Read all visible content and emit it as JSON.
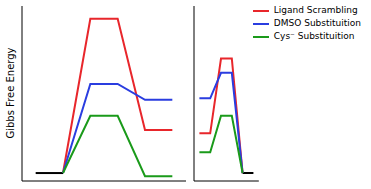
{
  "chart_data": [
    {
      "type": "line",
      "y_label": "Gibbs Free Energy",
      "x": [
        0,
        1,
        2,
        3,
        4,
        5
      ],
      "xlim": [
        -0.5,
        5.5
      ],
      "ylim": [
        -0.5,
        10.5
      ],
      "yticks": [
        0,
        2,
        4,
        6,
        8,
        10
      ],
      "tick_labels": false,
      "reference_level": {
        "x": [
          0,
          1
        ],
        "values": [
          0,
          0
        ],
        "color": "#000000"
      },
      "series": [
        {
          "name": "Ligand Scrambling",
          "color": "#e8262b",
          "values": [
            null,
            0,
            9.7,
            9.7,
            2.7,
            2.7
          ]
        },
        {
          "name": "DMSO Substituition",
          "color": "#2a3de0",
          "values": [
            null,
            0,
            5.6,
            5.6,
            4.6,
            4.6
          ]
        },
        {
          "name": "Cys⁻ Substituition",
          "color": "#1a9a1a",
          "values": [
            null,
            0,
            3.6,
            3.6,
            -0.2,
            -0.2
          ]
        }
      ]
    },
    {
      "type": "line",
      "x": [
        0,
        1,
        2,
        3,
        4,
        5
      ],
      "xlim": [
        -0.5,
        5.5
      ],
      "ylim": [
        -0.5,
        10.5
      ],
      "tick_labels": false,
      "legend": "upper right",
      "reference_level": {
        "x": [
          4,
          5
        ],
        "values": [
          0,
          0
        ],
        "color": "#000000"
      },
      "series": [
        {
          "name": "Ligand Scrambling",
          "color": "#e8262b",
          "values": [
            2.5,
            2.5,
            7.2,
            7.2,
            0,
            null
          ]
        },
        {
          "name": "DMSO Substituition",
          "color": "#2a3de0",
          "values": [
            4.7,
            4.7,
            6.3,
            6.3,
            0,
            null
          ]
        },
        {
          "name": "Cys⁻ Substituition",
          "color": "#1a9a1a",
          "values": [
            1.3,
            1.3,
            3.6,
            3.6,
            0,
            null
          ]
        }
      ]
    }
  ]
}
